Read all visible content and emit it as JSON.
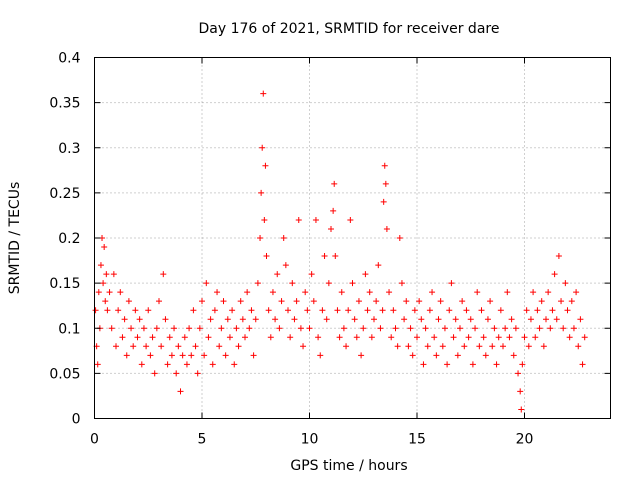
{
  "chart_data": {
    "type": "scatter",
    "title": "Day 176 of 2021, SRMTID for receiver dare",
    "xlabel": "GPS time / hours",
    "ylabel": "SRMTID / TECUs",
    "xlim": [
      0,
      24
    ],
    "ylim": [
      0,
      0.4
    ],
    "xticks": [
      0,
      5,
      10,
      15,
      20
    ],
    "xtick_labels": [
      "0",
      "5",
      "10",
      "15",
      "20"
    ],
    "yticks": [
      0,
      0.05,
      0.1,
      0.15,
      0.2,
      0.25,
      0.3,
      0.35,
      0.4
    ],
    "ytick_labels": [
      "0",
      "0.05",
      "0.1",
      "0.15",
      "0.2",
      "0.25",
      "0.3",
      "0.35",
      "0.4"
    ],
    "grid": true,
    "marker": "plus",
    "series_color": "#ff0000",
    "series": [
      {
        "name": "SRMTID",
        "points": [
          [
            0.05,
            0.12
          ],
          [
            0.1,
            0.08
          ],
          [
            0.15,
            0.06
          ],
          [
            0.2,
            0.14
          ],
          [
            0.25,
            0.1
          ],
          [
            0.3,
            0.17
          ],
          [
            0.35,
            0.2
          ],
          [
            0.4,
            0.15
          ],
          [
            0.45,
            0.19
          ],
          [
            0.5,
            0.13
          ],
          [
            0.55,
            0.16
          ],
          [
            0.6,
            0.12
          ],
          [
            0.7,
            0.14
          ],
          [
            0.8,
            0.1
          ],
          [
            0.9,
            0.16
          ],
          [
            1.0,
            0.08
          ],
          [
            1.1,
            0.12
          ],
          [
            1.2,
            0.14
          ],
          [
            1.3,
            0.09
          ],
          [
            1.4,
            0.11
          ],
          [
            1.5,
            0.07
          ],
          [
            1.6,
            0.13
          ],
          [
            1.7,
            0.1
          ],
          [
            1.8,
            0.08
          ],
          [
            1.9,
            0.12
          ],
          [
            2.0,
            0.09
          ],
          [
            2.1,
            0.11
          ],
          [
            2.2,
            0.06
          ],
          [
            2.3,
            0.1
          ],
          [
            2.4,
            0.08
          ],
          [
            2.5,
            0.12
          ],
          [
            2.6,
            0.07
          ],
          [
            2.7,
            0.09
          ],
          [
            2.8,
            0.05
          ],
          [
            2.9,
            0.1
          ],
          [
            3.0,
            0.13
          ],
          [
            3.1,
            0.08
          ],
          [
            3.2,
            0.16
          ],
          [
            3.3,
            0.11
          ],
          [
            3.4,
            0.06
          ],
          [
            3.5,
            0.09
          ],
          [
            3.6,
            0.07
          ],
          [
            3.7,
            0.1
          ],
          [
            3.8,
            0.05
          ],
          [
            3.9,
            0.08
          ],
          [
            4.0,
            0.03
          ],
          [
            4.1,
            0.07
          ],
          [
            4.2,
            0.09
          ],
          [
            4.3,
            0.06
          ],
          [
            4.4,
            0.1
          ],
          [
            4.5,
            0.07
          ],
          [
            4.6,
            0.12
          ],
          [
            4.7,
            0.08
          ],
          [
            4.8,
            0.05
          ],
          [
            4.9,
            0.1
          ],
          [
            5.0,
            0.13
          ],
          [
            5.1,
            0.07
          ],
          [
            5.2,
            0.15
          ],
          [
            5.3,
            0.09
          ],
          [
            5.4,
            0.11
          ],
          [
            5.5,
            0.06
          ],
          [
            5.6,
            0.12
          ],
          [
            5.7,
            0.14
          ],
          [
            5.8,
            0.08
          ],
          [
            5.9,
            0.1
          ],
          [
            6.0,
            0.13
          ],
          [
            6.1,
            0.07
          ],
          [
            6.2,
            0.11
          ],
          [
            6.3,
            0.09
          ],
          [
            6.4,
            0.12
          ],
          [
            6.5,
            0.06
          ],
          [
            6.6,
            0.1
          ],
          [
            6.7,
            0.08
          ],
          [
            6.8,
            0.13
          ],
          [
            6.9,
            0.11
          ],
          [
            7.0,
            0.09
          ],
          [
            7.1,
            0.14
          ],
          [
            7.2,
            0.1
          ],
          [
            7.3,
            0.12
          ],
          [
            7.4,
            0.07
          ],
          [
            7.5,
            0.11
          ],
          [
            7.6,
            0.15
          ],
          [
            7.7,
            0.2
          ],
          [
            7.75,
            0.25
          ],
          [
            7.8,
            0.3
          ],
          [
            7.85,
            0.36
          ],
          [
            7.9,
            0.22
          ],
          [
            7.95,
            0.28
          ],
          [
            8.0,
            0.18
          ],
          [
            8.1,
            0.12
          ],
          [
            8.2,
            0.09
          ],
          [
            8.3,
            0.14
          ],
          [
            8.4,
            0.11
          ],
          [
            8.5,
            0.16
          ],
          [
            8.6,
            0.1
          ],
          [
            8.7,
            0.13
          ],
          [
            8.8,
            0.2
          ],
          [
            8.9,
            0.17
          ],
          [
            9.0,
            0.12
          ],
          [
            9.1,
            0.09
          ],
          [
            9.2,
            0.15
          ],
          [
            9.3,
            0.11
          ],
          [
            9.4,
            0.13
          ],
          [
            9.5,
            0.22
          ],
          [
            9.6,
            0.1
          ],
          [
            9.7,
            0.08
          ],
          [
            9.8,
            0.14
          ],
          [
            9.9,
            0.12
          ],
          [
            10.0,
            0.1
          ],
          [
            10.1,
            0.16
          ],
          [
            10.2,
            0.13
          ],
          [
            10.3,
            0.22
          ],
          [
            10.4,
            0.09
          ],
          [
            10.5,
            0.07
          ],
          [
            10.6,
            0.12
          ],
          [
            10.7,
            0.18
          ],
          [
            10.8,
            0.11
          ],
          [
            10.9,
            0.15
          ],
          [
            11.0,
            0.21
          ],
          [
            11.1,
            0.23
          ],
          [
            11.15,
            0.26
          ],
          [
            11.2,
            0.18
          ],
          [
            11.3,
            0.12
          ],
          [
            11.4,
            0.09
          ],
          [
            11.5,
            0.14
          ],
          [
            11.6,
            0.1
          ],
          [
            11.7,
            0.08
          ],
          [
            11.8,
            0.12
          ],
          [
            11.9,
            0.22
          ],
          [
            12.0,
            0.15
          ],
          [
            12.1,
            0.11
          ],
          [
            12.2,
            0.09
          ],
          [
            12.3,
            0.13
          ],
          [
            12.4,
            0.07
          ],
          [
            12.5,
            0.1
          ],
          [
            12.6,
            0.16
          ],
          [
            12.7,
            0.12
          ],
          [
            12.8,
            0.14
          ],
          [
            12.9,
            0.09
          ],
          [
            13.0,
            0.11
          ],
          [
            13.1,
            0.13
          ],
          [
            13.2,
            0.17
          ],
          [
            13.3,
            0.1
          ],
          [
            13.4,
            0.12
          ],
          [
            13.45,
            0.24
          ],
          [
            13.5,
            0.28
          ],
          [
            13.55,
            0.26
          ],
          [
            13.6,
            0.21
          ],
          [
            13.7,
            0.14
          ],
          [
            13.8,
            0.09
          ],
          [
            13.9,
            0.12
          ],
          [
            14.0,
            0.1
          ],
          [
            14.1,
            0.08
          ],
          [
            14.2,
            0.2
          ],
          [
            14.3,
            0.15
          ],
          [
            14.4,
            0.11
          ],
          [
            14.5,
            0.13
          ],
          [
            14.6,
            0.08
          ],
          [
            14.7,
            0.1
          ],
          [
            14.8,
            0.07
          ],
          [
            14.9,
            0.12
          ],
          [
            15.0,
            0.09
          ],
          [
            15.1,
            0.13
          ],
          [
            15.2,
            0.11
          ],
          [
            15.3,
            0.06
          ],
          [
            15.4,
            0.1
          ],
          [
            15.5,
            0.08
          ],
          [
            15.6,
            0.12
          ],
          [
            15.7,
            0.14
          ],
          [
            15.8,
            0.09
          ],
          [
            15.9,
            0.07
          ],
          [
            16.0,
            0.11
          ],
          [
            16.1,
            0.13
          ],
          [
            16.2,
            0.08
          ],
          [
            16.3,
            0.1
          ],
          [
            16.4,
            0.06
          ],
          [
            16.5,
            0.12
          ],
          [
            16.6,
            0.15
          ],
          [
            16.7,
            0.09
          ],
          [
            16.8,
            0.11
          ],
          [
            16.9,
            0.07
          ],
          [
            17.0,
            0.1
          ],
          [
            17.1,
            0.13
          ],
          [
            17.2,
            0.08
          ],
          [
            17.3,
            0.12
          ],
          [
            17.4,
            0.09
          ],
          [
            17.5,
            0.11
          ],
          [
            17.6,
            0.06
          ],
          [
            17.7,
            0.1
          ],
          [
            17.8,
            0.14
          ],
          [
            17.9,
            0.08
          ],
          [
            18.0,
            0.12
          ],
          [
            18.1,
            0.09
          ],
          [
            18.2,
            0.07
          ],
          [
            18.3,
            0.11
          ],
          [
            18.4,
            0.13
          ],
          [
            18.5,
            0.08
          ],
          [
            18.6,
            0.1
          ],
          [
            18.7,
            0.06
          ],
          [
            18.8,
            0.09
          ],
          [
            18.9,
            0.12
          ],
          [
            19.0,
            0.08
          ],
          [
            19.1,
            0.1
          ],
          [
            19.2,
            0.14
          ],
          [
            19.3,
            0.09
          ],
          [
            19.4,
            0.11
          ],
          [
            19.5,
            0.07
          ],
          [
            19.6,
            0.1
          ],
          [
            19.7,
            0.05
          ],
          [
            19.8,
            0.03
          ],
          [
            19.85,
            0.01
          ],
          [
            19.9,
            0.06
          ],
          [
            20.0,
            0.09
          ],
          [
            20.1,
            0.12
          ],
          [
            20.2,
            0.08
          ],
          [
            20.3,
            0.11
          ],
          [
            20.4,
            0.14
          ],
          [
            20.5,
            0.09
          ],
          [
            20.6,
            0.12
          ],
          [
            20.7,
            0.1
          ],
          [
            20.8,
            0.13
          ],
          [
            20.9,
            0.08
          ],
          [
            21.0,
            0.11
          ],
          [
            21.1,
            0.14
          ],
          [
            21.2,
            0.1
          ],
          [
            21.3,
            0.12
          ],
          [
            21.4,
            0.16
          ],
          [
            21.5,
            0.11
          ],
          [
            21.6,
            0.18
          ],
          [
            21.7,
            0.13
          ],
          [
            21.8,
            0.1
          ],
          [
            21.9,
            0.15
          ],
          [
            22.0,
            0.12
          ],
          [
            22.1,
            0.09
          ],
          [
            22.2,
            0.13
          ],
          [
            22.3,
            0.1
          ],
          [
            22.4,
            0.14
          ],
          [
            22.5,
            0.08
          ],
          [
            22.6,
            0.11
          ],
          [
            22.7,
            0.06
          ],
          [
            22.8,
            0.09
          ]
        ]
      }
    ]
  }
}
